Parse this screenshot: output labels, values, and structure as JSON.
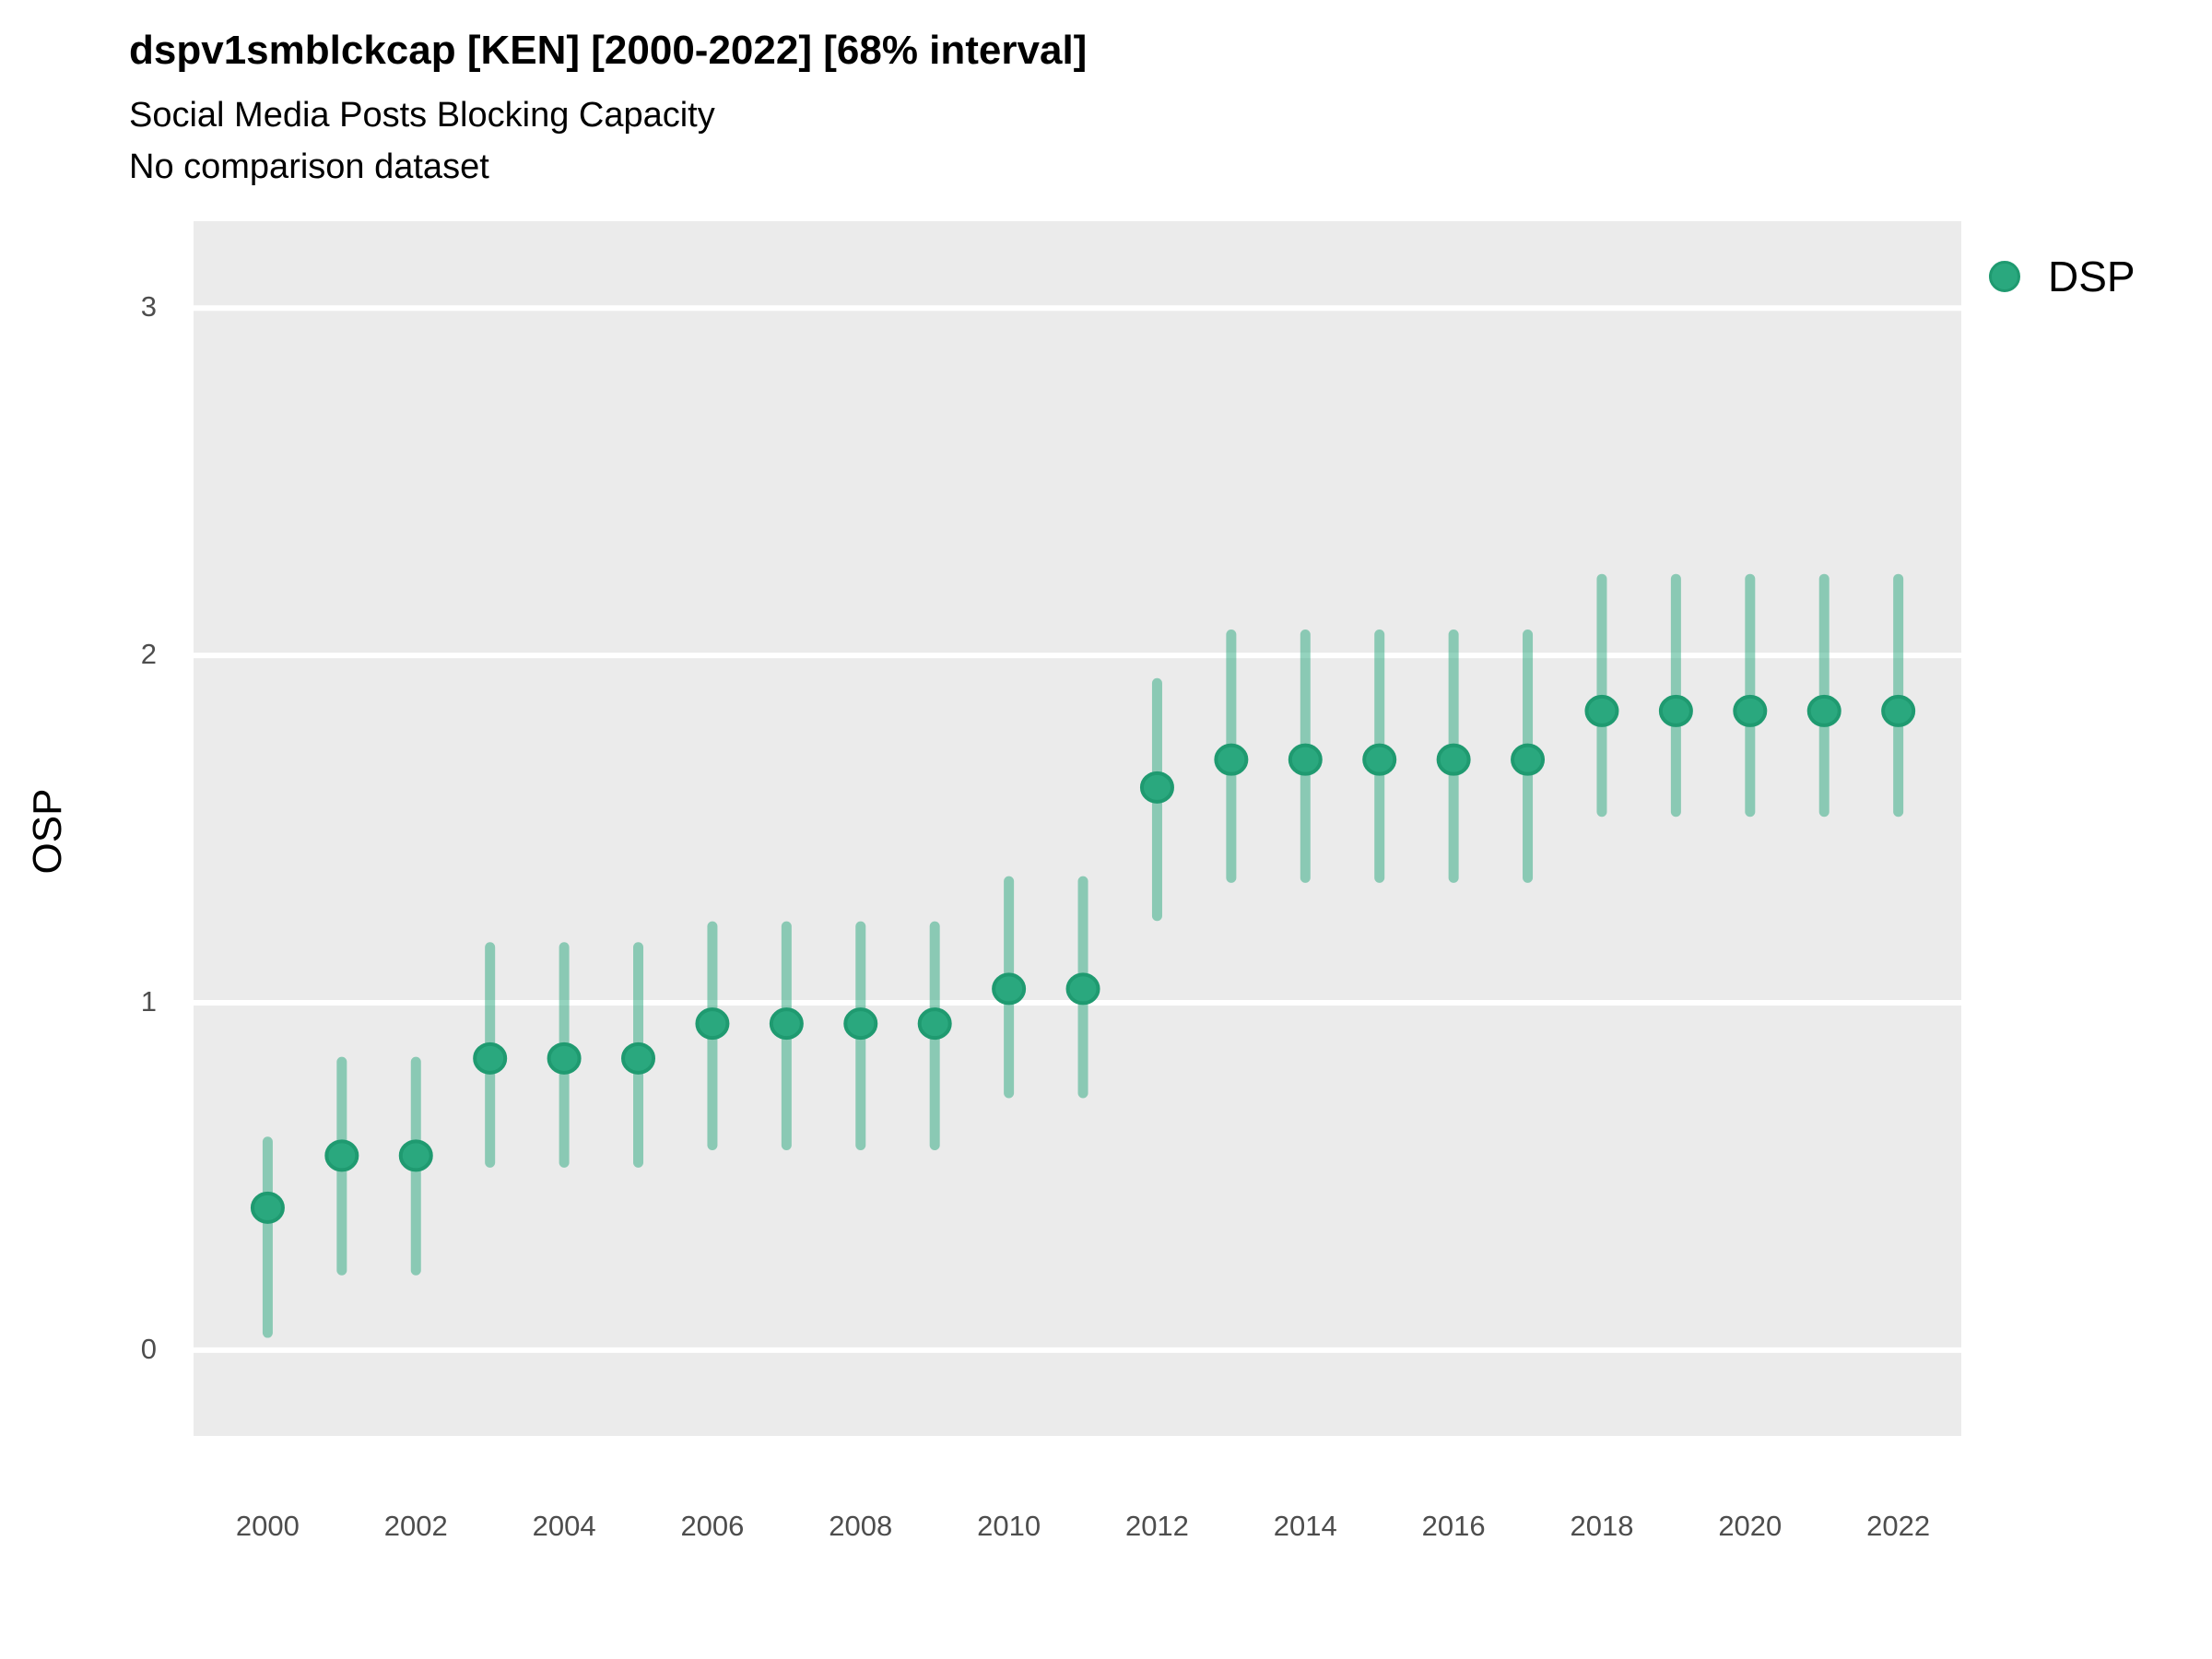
{
  "header": {
    "title": "dspv1smblckcap [KEN] [2000-2022] [68% interval]",
    "subtitle": "Social Media Posts Blocking Capacity",
    "note": "No comparison dataset"
  },
  "y_axis": {
    "label": "OSP",
    "ticks": [
      "0",
      "1",
      "2",
      "3"
    ]
  },
  "x_axis": {
    "ticks": [
      "2000",
      "2002",
      "2004",
      "2006",
      "2008",
      "2010",
      "2012",
      "2014",
      "2016",
      "2018",
      "2020",
      "2022"
    ]
  },
  "legend": {
    "label": "DSP"
  },
  "colors": {
    "point": "#2aa87e",
    "point_stroke": "#1f9a70",
    "interval": "#2aa87e",
    "interval_opacity": 0.5,
    "panel": "#ebebeb",
    "gridline": "#ffffff",
    "tick_text": "#4d4d4d"
  },
  "chart_data": {
    "type": "scatter",
    "title": "dspv1smblckcap [KEN] [2000-2022] [68% interval]",
    "subtitle": "Social Media Posts Blocking Capacity",
    "note": "No comparison dataset",
    "xlabel": "",
    "ylabel": "OSP",
    "interval_level": "68%",
    "grid": "horizontal-major-only",
    "legend_position": "right-top",
    "x": [
      2000,
      2001,
      2002,
      2003,
      2004,
      2005,
      2006,
      2007,
      2008,
      2009,
      2010,
      2011,
      2012,
      2013,
      2014,
      2015,
      2016,
      2017,
      2018,
      2019,
      2020,
      2021,
      2022
    ],
    "series": [
      {
        "name": "DSP",
        "values": [
          0.41,
          0.56,
          0.56,
          0.84,
          0.84,
          0.84,
          0.94,
          0.94,
          0.94,
          0.94,
          1.04,
          1.04,
          1.62,
          1.7,
          1.7,
          1.7,
          1.7,
          1.7,
          1.84,
          1.84,
          1.84,
          1.84,
          1.84
        ],
        "lower": [
          0.05,
          0.23,
          0.23,
          0.54,
          0.54,
          0.54,
          0.59,
          0.59,
          0.59,
          0.59,
          0.74,
          0.74,
          1.25,
          1.36,
          1.36,
          1.36,
          1.36,
          1.36,
          1.55,
          1.55,
          1.55,
          1.55,
          1.55
        ],
        "upper": [
          0.6,
          0.83,
          0.83,
          1.16,
          1.16,
          1.16,
          1.22,
          1.22,
          1.22,
          1.22,
          1.35,
          1.35,
          1.92,
          2.06,
          2.06,
          2.06,
          2.06,
          2.06,
          2.22,
          2.22,
          2.22,
          2.22,
          2.22
        ]
      }
    ],
    "xticks": [
      2000,
      2002,
      2004,
      2006,
      2008,
      2010,
      2012,
      2014,
      2016,
      2018,
      2020,
      2022
    ],
    "yticks": [
      0,
      1,
      2,
      3
    ],
    "xlim": [
      1999.0,
      2022.85
    ],
    "ylim": [
      -0.247,
      3.25
    ]
  }
}
